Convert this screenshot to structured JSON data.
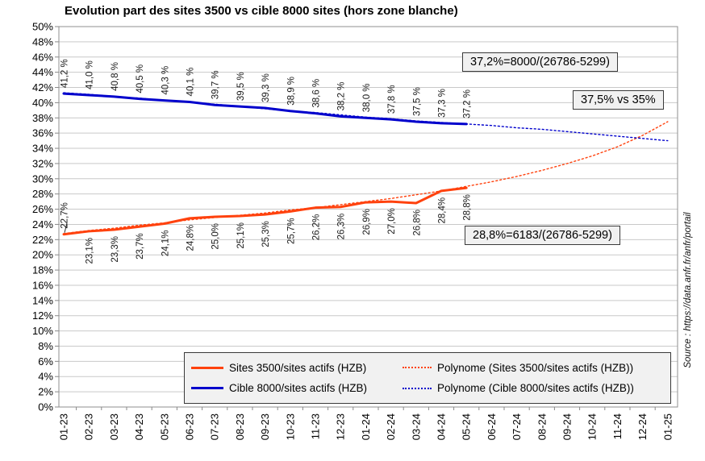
{
  "title": "Evolution part des sites 3500 vs cible 8000 sites (hors zone blanche)",
  "source_note": "Source : https://data.anfr.fr/anfr/portail",
  "annotations": {
    "cible_formula": "37,2%=8000/(26786-5299)",
    "projection_comparison": "37,5% vs 35%",
    "sites_formula": "28,8%=6183/(26786-5299)"
  },
  "legend": {
    "items": [
      {
        "label": "Sites 3500/sites actifs (HZB)",
        "style": "solid",
        "color": "#FF420E"
      },
      {
        "label": "Polynome (Sites 3500/sites actifs (HZB))",
        "style": "dotted",
        "color": "#FF420E"
      },
      {
        "label": "Cible 8000/sites actifs (HZB)",
        "style": "solid",
        "color": "#0000CC"
      },
      {
        "label": "Polynome (Cible 8000/sites actifs (HZB))",
        "style": "dotted",
        "color": "#0000CC"
      }
    ]
  },
  "chart_data": {
    "type": "line",
    "title": "Evolution part des sites 3500 vs cible 8000 sites (hors zone blanche)",
    "x_categories": [
      "01-23",
      "02-23",
      "03-23",
      "04-23",
      "05-23",
      "06-23",
      "07-23",
      "08-23",
      "09-23",
      "10-23",
      "11-23",
      "12-23",
      "01-24",
      "02-24",
      "03-24",
      "04-24",
      "05-24",
      "06-24",
      "07-24",
      "08-24",
      "09-24",
      "10-24",
      "11-24",
      "12-24",
      "01-25"
    ],
    "y_axis": {
      "min": 0,
      "max": 50,
      "step": 2,
      "tick_suffix": "%"
    },
    "grid": true,
    "legend_position": "bottom",
    "series": [
      {
        "id": "sites-3500",
        "name": "Sites 3500/sites actifs (HZB)",
        "color": "#FF420E",
        "style": "solid",
        "label_side": "below",
        "label_side_first": "above",
        "values": [
          22.7,
          23.1,
          23.3,
          23.7,
          24.1,
          24.8,
          25.0,
          25.1,
          25.3,
          25.7,
          26.2,
          26.3,
          26.9,
          27.0,
          26.8,
          28.4,
          28.8
        ],
        "labels": [
          "22,7%",
          "23,1%",
          "23,3%",
          "23,7%",
          "24,1%",
          "24,8%",
          "25,0%",
          "25,1%",
          "25,3%",
          "25,7%",
          "26,2%",
          "26,3%",
          "26,9%",
          "27,0%",
          "26,8%",
          "28,4%",
          "28,8%"
        ]
      },
      {
        "id": "cible-8000",
        "name": "Cible 8000/sites actifs (HZB)",
        "color": "#0000CC",
        "style": "solid",
        "label_side": "above",
        "values": [
          41.2,
          41.0,
          40.8,
          40.5,
          40.3,
          40.1,
          39.7,
          39.5,
          39.3,
          38.9,
          38.6,
          38.2,
          38.0,
          37.8,
          37.5,
          37.3,
          37.2
        ],
        "labels": [
          "41,2 %",
          "41,0 %",
          "40,8 %",
          "40,5 %",
          "40,3 %",
          "40,1 %",
          "39,7 %",
          "39,5 %",
          "39,3 %",
          "38,9 %",
          "38,6 %",
          "38,2 %",
          "38,0 %",
          "37,8 %",
          "37,5 %",
          "37,3 %",
          "37,2 %"
        ]
      },
      {
        "id": "poly-sites-3500",
        "name": "Polynome (Sites 3500/sites actifs (HZB))",
        "color": "#FF420E",
        "style": "dotted",
        "values": [
          22.8,
          23.2,
          23.5,
          23.9,
          24.2,
          24.6,
          24.9,
          25.2,
          25.5,
          25.9,
          26.2,
          26.6,
          27.0,
          27.4,
          27.9,
          28.4,
          29.0,
          29.6,
          30.3,
          31.1,
          32.0,
          33.0,
          34.2,
          35.7,
          37.5
        ]
      },
      {
        "id": "poly-cible-8000",
        "name": "Polynome (Cible 8000/sites actifs (HZB))",
        "color": "#0000CC",
        "style": "dotted",
        "values": [
          41.3,
          41.1,
          40.8,
          40.6,
          40.3,
          40.1,
          39.8,
          39.5,
          39.2,
          38.9,
          38.7,
          38.4,
          38.1,
          37.9,
          37.6,
          37.4,
          37.2,
          37.0,
          36.7,
          36.5,
          36.2,
          35.9,
          35.6,
          35.3,
          35.0
        ]
      }
    ]
  }
}
